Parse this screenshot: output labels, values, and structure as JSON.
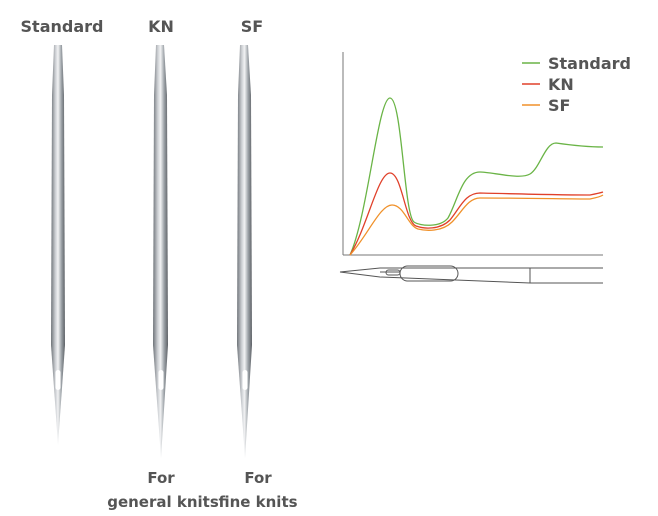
{
  "needles": [
    {
      "label": "Standard"
    },
    {
      "label": "KN",
      "caption": [
        "For",
        "general knits"
      ]
    },
    {
      "label": "SF",
      "caption": [
        "For",
        "fine knits"
      ]
    }
  ],
  "legend": [
    {
      "name": "Standard",
      "color": "#6ab446"
    },
    {
      "name": "KN",
      "color": "#e0402a"
    },
    {
      "name": "SF",
      "color": "#f0912a"
    }
  ]
}
